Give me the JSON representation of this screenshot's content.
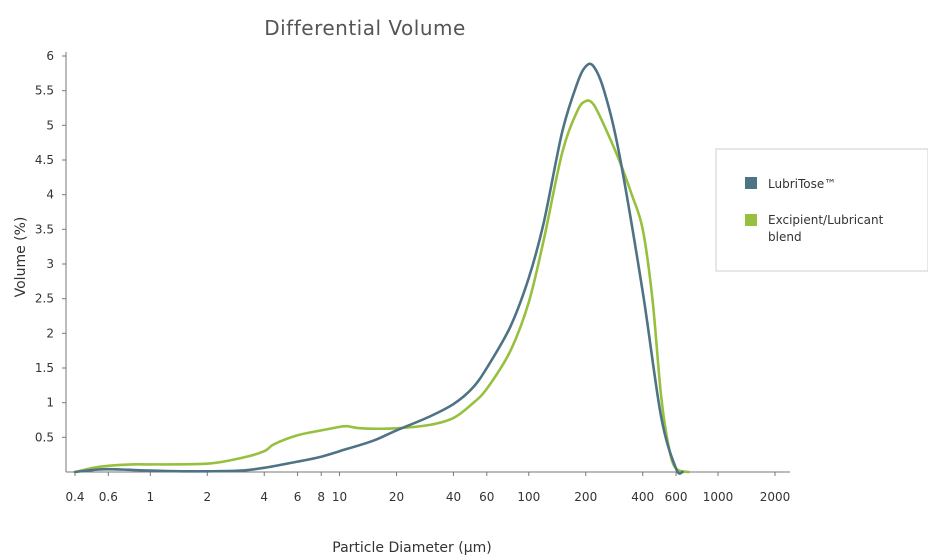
{
  "chart_data": {
    "type": "line",
    "title": "Differential Volume",
    "xlabel": "Particle Diameter (µm)",
    "ylabel": "Volume (%)",
    "xscale": "log",
    "xlim": [
      0.4,
      2000
    ],
    "ylim": [
      0,
      6
    ],
    "x_ticks": [
      0.4,
      0.6,
      1,
      2,
      4,
      6,
      8,
      10,
      20,
      40,
      60,
      100,
      200,
      400,
      600,
      1000,
      2000
    ],
    "x_tick_labels": [
      "0.4",
      "0.6",
      "1",
      "2",
      "4",
      "6",
      "8",
      "10",
      "20",
      "40",
      "60",
      "100",
      "200",
      "400",
      "600",
      "1000",
      "2000"
    ],
    "y_ticks": [
      0.5,
      1,
      1.5,
      2,
      2.5,
      3,
      3.5,
      4,
      4.5,
      5,
      5.5,
      6
    ],
    "y_tick_labels": [
      "0.5",
      "1",
      "1.5",
      "2",
      "2.5",
      "3",
      "3.5",
      "4",
      "4.5",
      "5",
      "5.5",
      "6"
    ],
    "grid": false,
    "legend_position": "right",
    "series": [
      {
        "name": "LubriTose™",
        "color": "#4e7384",
        "x": [
          0.4,
          0.5,
          0.6,
          0.8,
          1,
          1.5,
          2,
          3,
          4,
          6,
          8,
          10,
          15,
          20,
          30,
          40,
          50,
          60,
          80,
          100,
          120,
          150,
          180,
          200,
          220,
          250,
          300,
          400,
          500,
          600,
          650
        ],
        "y": [
          0.0,
          0.03,
          0.04,
          0.03,
          0.02,
          0.01,
          0.01,
          0.02,
          0.06,
          0.15,
          0.22,
          0.3,
          0.45,
          0.6,
          0.8,
          0.98,
          1.2,
          1.5,
          2.1,
          2.8,
          3.6,
          4.9,
          5.6,
          5.85,
          5.85,
          5.5,
          4.6,
          2.6,
          0.8,
          0.05,
          0.0
        ]
      },
      {
        "name": "Excipient/Lubricant blend",
        "color": "#98c03f",
        "x": [
          0.4,
          0.5,
          0.6,
          0.8,
          1,
          2,
          3,
          4,
          4.5,
          6,
          8,
          10,
          11,
          13,
          20,
          30,
          40,
          50,
          60,
          80,
          100,
          120,
          150,
          180,
          200,
          220,
          250,
          300,
          350,
          400,
          450,
          500,
          550,
          600,
          700
        ],
        "y": [
          0.0,
          0.06,
          0.09,
          0.11,
          0.11,
          0.12,
          0.2,
          0.3,
          0.4,
          0.53,
          0.6,
          0.65,
          0.66,
          0.63,
          0.63,
          0.68,
          0.78,
          0.98,
          1.2,
          1.75,
          2.45,
          3.35,
          4.6,
          5.2,
          5.35,
          5.3,
          5.0,
          4.5,
          4.0,
          3.5,
          2.5,
          1.1,
          0.35,
          0.05,
          0.0
        ]
      }
    ]
  }
}
